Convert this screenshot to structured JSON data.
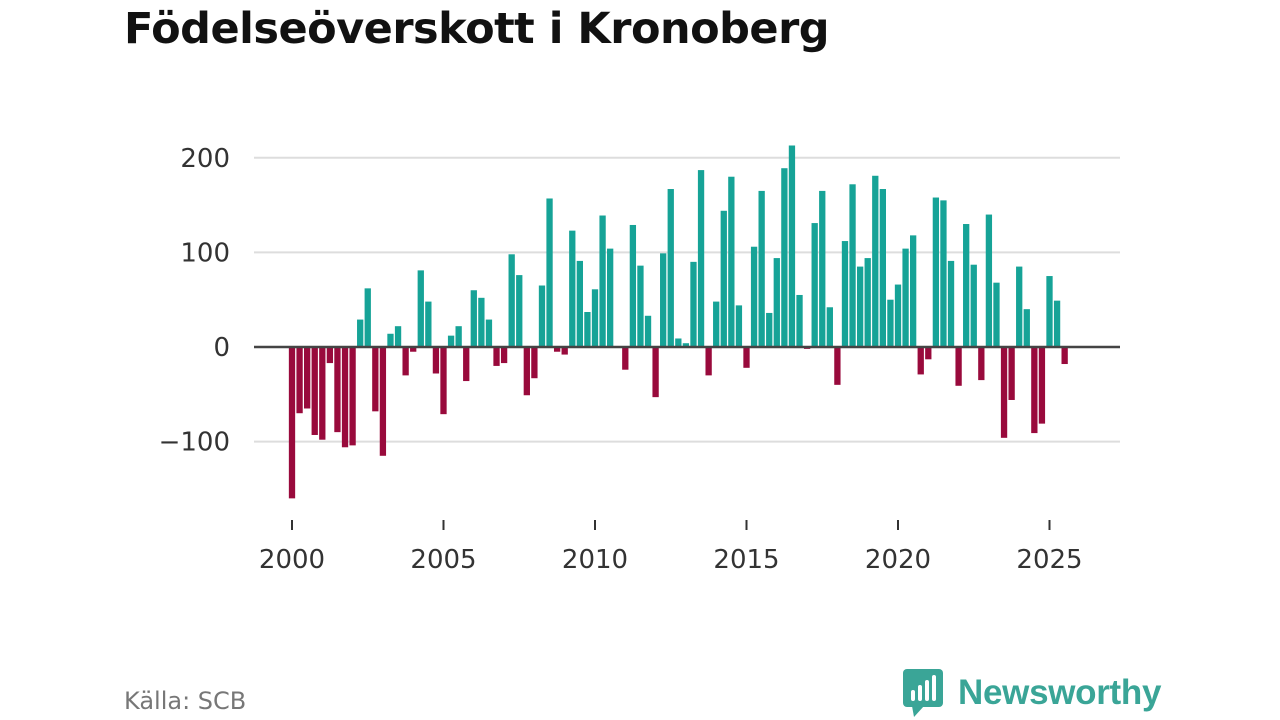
{
  "title": "Födelseöverskott i Kronoberg",
  "source": "Källa: SCB",
  "logo_text": "Newsworthy",
  "colors": {
    "positive": "#16a397",
    "negative": "#990a3c",
    "grid": "#dddddd",
    "zero": "#444444"
  },
  "chart_data": {
    "type": "bar",
    "title": "Födelseöverskott i Kronoberg",
    "xlabel": "",
    "ylabel": "",
    "ylim": [
      -160,
      220
    ],
    "yticks": [
      -100,
      0,
      100,
      200
    ],
    "ytick_labels": [
      "−100",
      "0",
      "100",
      "200"
    ],
    "xticks": [
      2000,
      2005,
      2010,
      2015,
      2020,
      2025
    ],
    "xtick_labels": [
      "2000",
      "2005",
      "2010",
      "2015",
      "2020",
      "2025"
    ],
    "x_start": 2000.0,
    "x_step": 0.25,
    "values": [
      -160,
      -70,
      -65,
      -93,
      -98,
      -17,
      -90,
      -106,
      -104,
      29,
      62,
      -68,
      -115,
      14,
      22,
      -30,
      -5,
      81,
      48,
      -28,
      -71,
      12,
      22,
      -36,
      60,
      52,
      29,
      -20,
      -17,
      98,
      76,
      -51,
      -33,
      65,
      157,
      -5,
      -8,
      123,
      91,
      37,
      61,
      139,
      104,
      0,
      -24,
      129,
      86,
      33,
      -53,
      99,
      167,
      9,
      4,
      90,
      187,
      -30,
      48,
      144,
      180,
      44,
      -22,
      106,
      165,
      36,
      94,
      189,
      213,
      55,
      -2,
      131,
      165,
      42,
      -40,
      112,
      172,
      85,
      94,
      181,
      167,
      50,
      66,
      104,
      118,
      -29,
      -13,
      158,
      155,
      91,
      -41,
      130,
      87,
      -35,
      140,
      68,
      -96,
      -56,
      85,
      40,
      -91,
      -81,
      75,
      49,
      -18
    ]
  }
}
